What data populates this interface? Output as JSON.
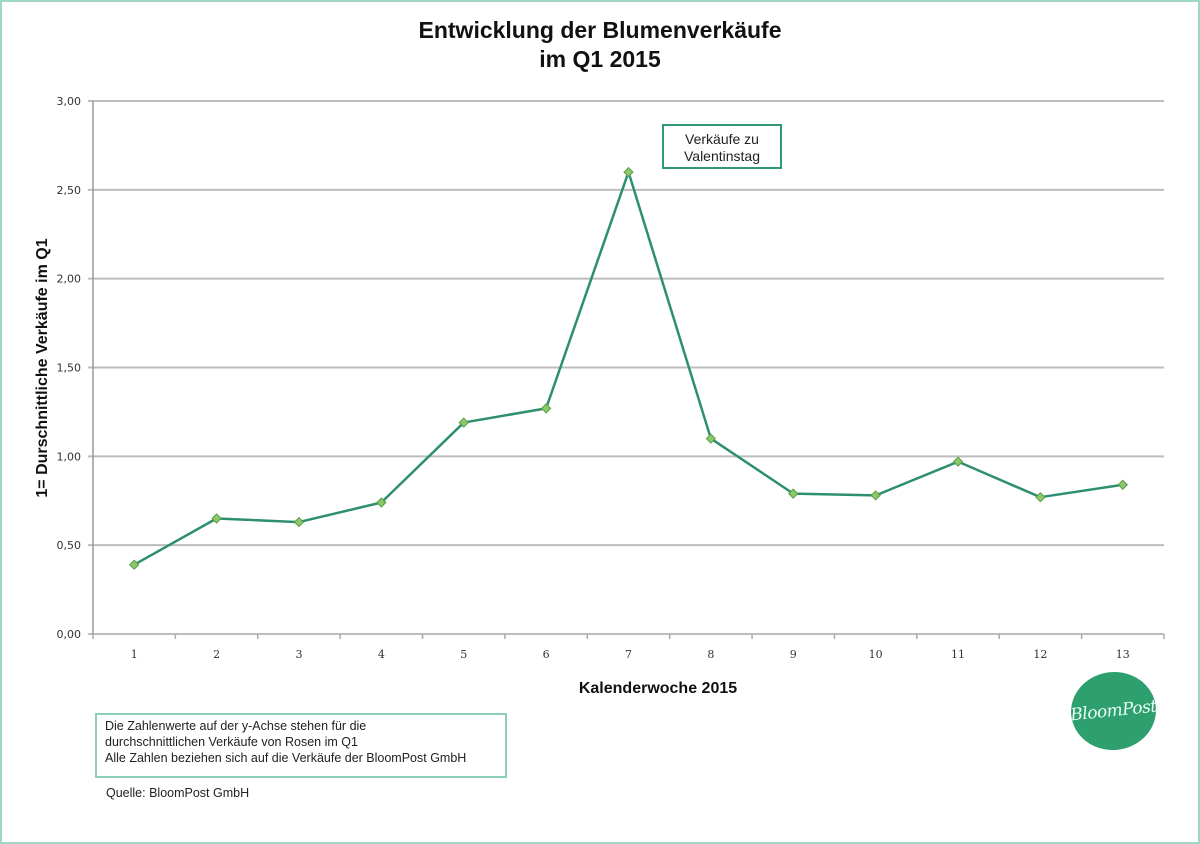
{
  "title": {
    "line1": "Entwicklung der Blumenverkäufe",
    "line2": "im Q1 2015"
  },
  "annotation": {
    "line1": "Verkäufe zu",
    "line2": "Valentinstag"
  },
  "note": {
    "line1": "Die Zahlenwerte auf der y-Achse stehen für die",
    "line2": "durchschnittlichen Verkäufe von Rosen im Q1",
    "line3": "Alle Zahlen beziehen sich auf die Verkäufe der BloomPost GmbH"
  },
  "source": "Quelle: BloomPost GmbH",
  "logo": {
    "text": "BloomPost"
  },
  "colors": {
    "line": "#2e8f6e",
    "marker_fill": "#8cc86a",
    "marker_stroke": "#5a9e4a",
    "grid": "#bdbdbd",
    "frame": "#9fd6c4",
    "logo_bg": "#2e9f6e"
  },
  "chart_data": {
    "type": "line",
    "title": "Entwicklung der Blumenverkäufe im Q1 2015",
    "xlabel": "Kalenderwoche 2015",
    "ylabel": "1= Durschnittliche Verkäufe im Q1",
    "categories": [
      "1",
      "2",
      "3",
      "4",
      "5",
      "6",
      "7",
      "8",
      "9",
      "10",
      "11",
      "12",
      "13"
    ],
    "series": [
      {
        "name": "Verkäufe",
        "values": [
          0.39,
          0.65,
          0.63,
          0.74,
          1.19,
          1.27,
          2.6,
          1.1,
          0.79,
          0.78,
          0.97,
          0.77,
          0.84
        ]
      }
    ],
    "ylim": [
      0,
      3
    ],
    "yticks": [
      "0,00",
      "0,50",
      "1,00",
      "1,50",
      "2,00",
      "2,50",
      "3,00"
    ],
    "grid": true,
    "legend": "none",
    "annotations": [
      {
        "text": "Verkäufe zu Valentinstag",
        "x": "7",
        "y": 2.6
      }
    ]
  }
}
